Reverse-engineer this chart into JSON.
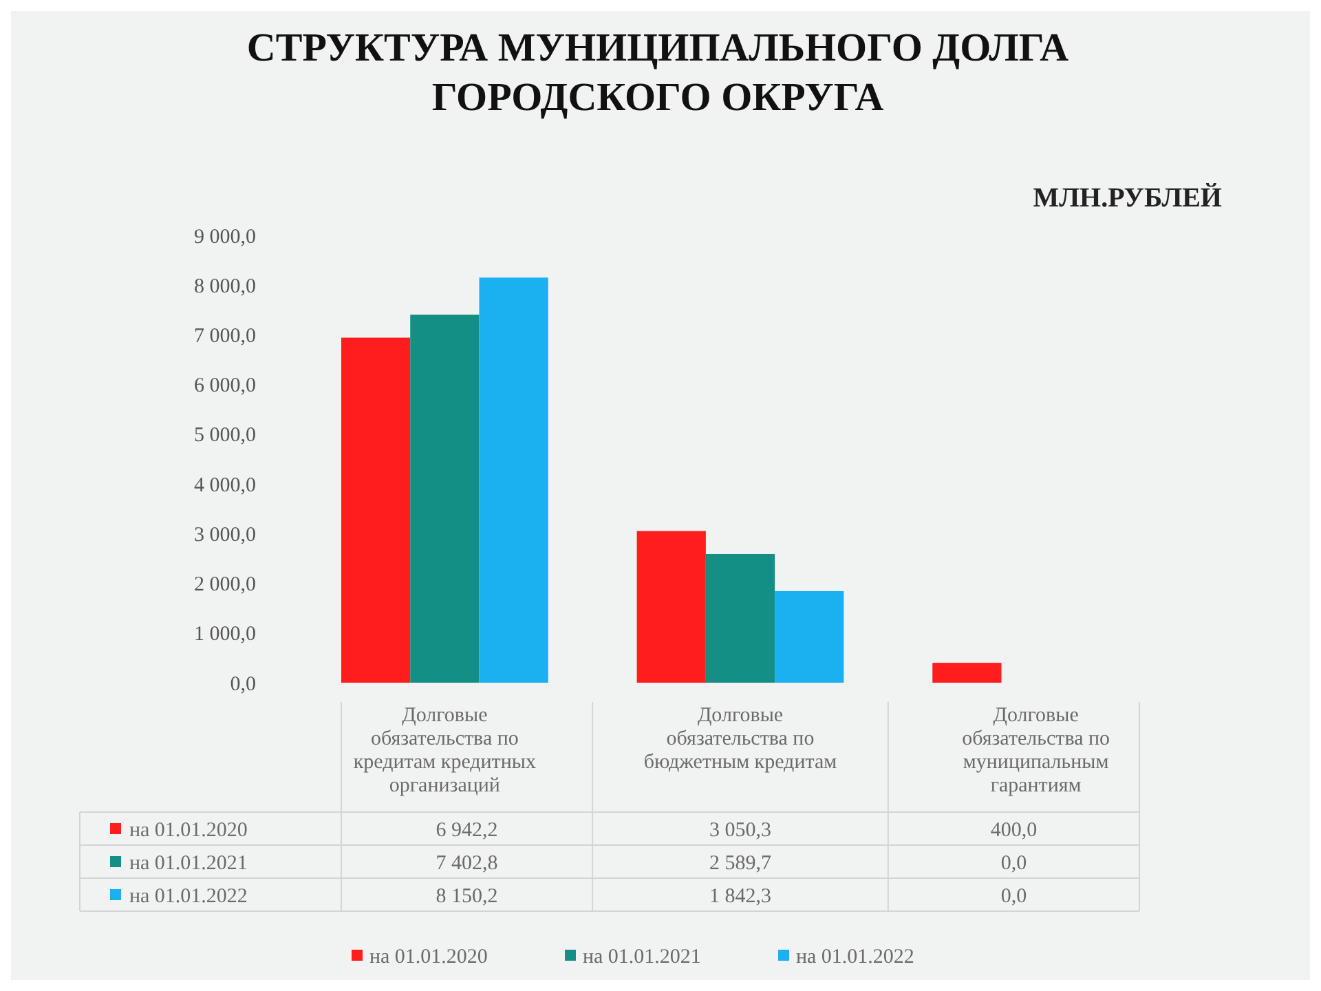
{
  "chart_data": {
    "type": "bar",
    "title": "СТРУКТУРА МУНИЦИПАЛЬНОГО ДОЛГА ГОРОДСКОГО ОКРУГА",
    "annotations": [
      "МЛН.РУБЛЕЙ"
    ],
    "categories": [
      "Долговые обязательства по кредитам кредитных организаций",
      "Долговые обязательства по бюджетным кредитам",
      "Долговые обязательства по муниципальным гарантиям"
    ],
    "series": [
      {
        "name": "на 01.01.2020",
        "color": "#fe1e1e",
        "values": [
          6942.2,
          3050.3,
          400
        ],
        "value_labels": [
          "6 942,2",
          "3 050,3",
          "400,0"
        ]
      },
      {
        "name": "на 01.01.2021",
        "color": "#138f86",
        "values": [
          7402.8,
          2589.7,
          0
        ],
        "value_labels": [
          "7 402,8",
          "2 589,7",
          "0,0"
        ]
      },
      {
        "name": "на 01.01.2022",
        "color": "#1bb0f0",
        "values": [
          8150.2,
          1842.3,
          0
        ],
        "value_labels": [
          "8 150,2",
          "1 842,3",
          "0,0"
        ]
      }
    ],
    "ylim": [
      0,
      9000
    ],
    "yticks": [
      {
        "value": 0,
        "label": "0,0"
      },
      {
        "value": 1000,
        "label": "1 000,0"
      },
      {
        "value": 2000,
        "label": "2 000,0"
      },
      {
        "value": 3000,
        "label": "3 000,0"
      },
      {
        "value": 4000,
        "label": "4 000,0"
      },
      {
        "value": 5000,
        "label": "5 000,0"
      },
      {
        "value": 6000,
        "label": "6 000,0"
      },
      {
        "value": 7000,
        "label": "7 000,0"
      },
      {
        "value": 8000,
        "label": "8 000,0"
      },
      {
        "value": 9000,
        "label": "9 000,0"
      }
    ],
    "legend": "bottom"
  }
}
